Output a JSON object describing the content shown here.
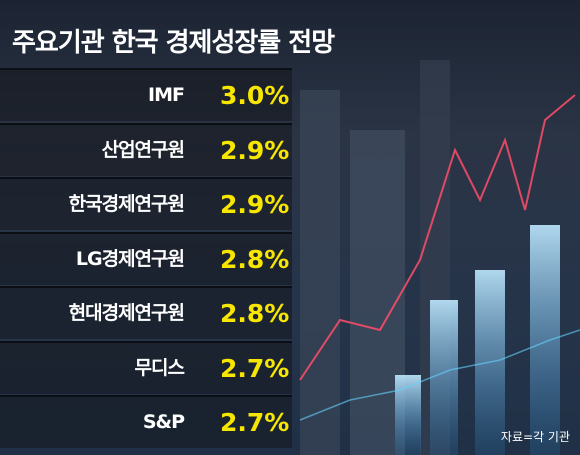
{
  "header": {
    "title": "주요기관 한국 경제성장률 전망"
  },
  "table": {
    "rows": [
      [
        "IMF",
        "3.0%"
      ],
      [
        "산업연구원",
        "2.9%"
      ],
      [
        "한국경제연구원",
        "2.9%"
      ],
      [
        "LG경제연구원",
        "2.8%"
      ],
      [
        "현대경제연구원",
        "2.8%"
      ],
      [
        "무디스",
        "2.7%"
      ],
      [
        "S&P",
        "2.7%"
      ]
    ]
  },
  "footer": {
    "source": "자료=각 기관"
  }
}
